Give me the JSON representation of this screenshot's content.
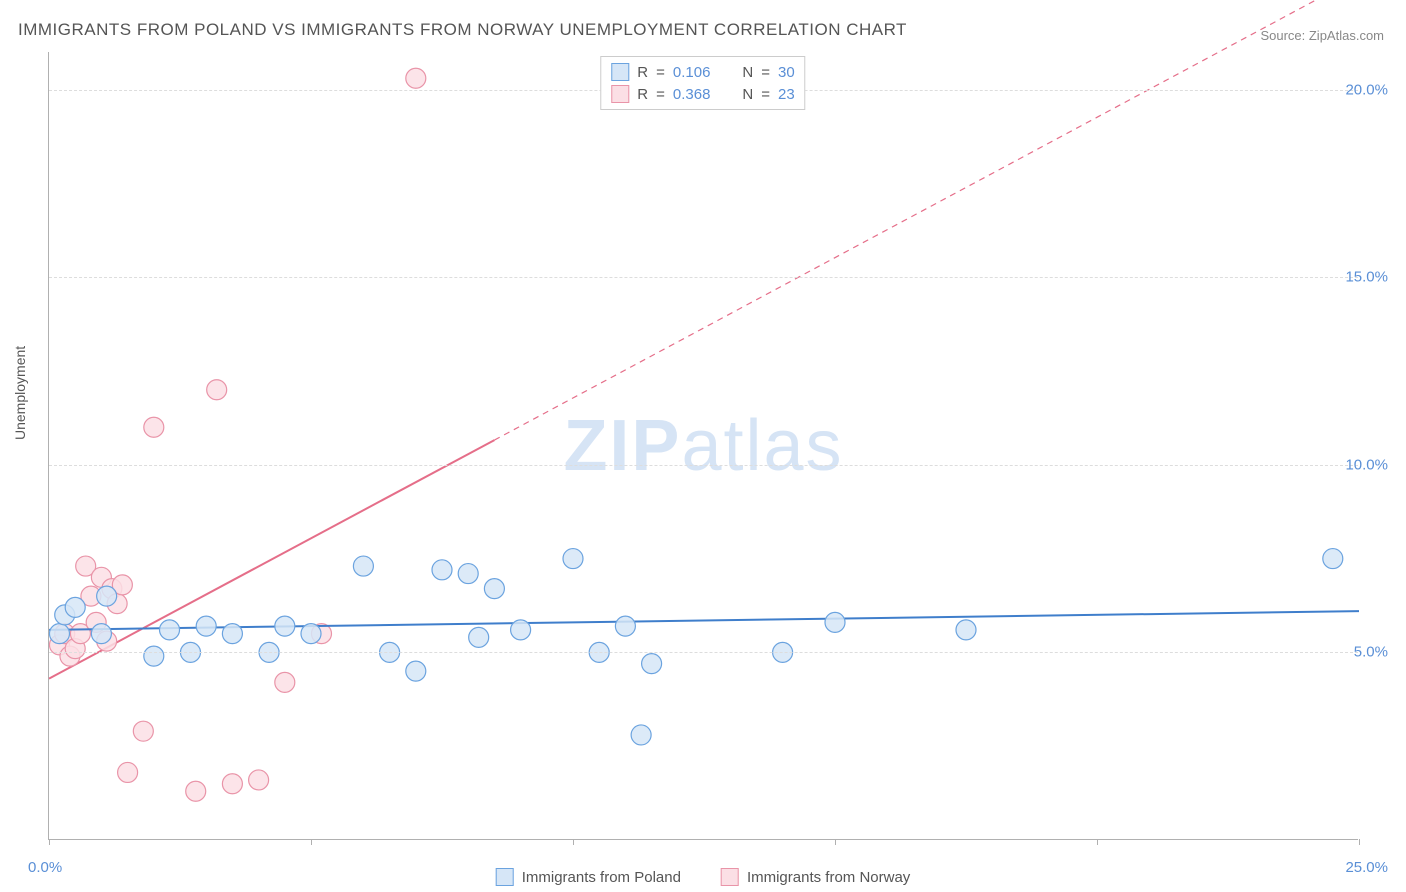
{
  "title": "IMMIGRANTS FROM POLAND VS IMMIGRANTS FROM NORWAY UNEMPLOYMENT CORRELATION CHART",
  "source": "Source: ZipAtlas.com",
  "ylabel": "Unemployment",
  "watermark_bold": "ZIP",
  "watermark_rest": "atlas",
  "chart": {
    "type": "scatter",
    "xlim": [
      0,
      25
    ],
    "ylim": [
      0,
      21
    ],
    "x_ticks": [
      0,
      5,
      10,
      15,
      20,
      25
    ],
    "x_tick_labels": {
      "0": "0.0%",
      "25": "25.0%"
    },
    "y_gridlines": [
      5,
      10,
      15,
      20
    ],
    "y_tick_labels": {
      "5": "5.0%",
      "10": "10.0%",
      "15": "15.0%",
      "20": "20.0%"
    },
    "grid_color": "#dddddd",
    "axis_color": "#b0b0b0",
    "background_color": "#ffffff",
    "marker_radius": 10,
    "marker_stroke_width": 1.2,
    "line_width": 2,
    "series": [
      {
        "name": "Immigrants from Poland",
        "label": "Immigrants from Poland",
        "fill": "#d6e6f7",
        "stroke": "#6ba3df",
        "line_color": "#3f7ecb",
        "R": "0.106",
        "N": "30",
        "trend": {
          "x1": 0,
          "y1": 5.6,
          "x2": 25,
          "y2": 6.1,
          "solid_until": 25
        },
        "points": [
          [
            0.2,
            5.5
          ],
          [
            0.3,
            6.0
          ],
          [
            0.5,
            6.2
          ],
          [
            1.0,
            5.5
          ],
          [
            1.1,
            6.5
          ],
          [
            2.0,
            4.9
          ],
          [
            2.3,
            5.6
          ],
          [
            2.7,
            5.0
          ],
          [
            3.0,
            5.7
          ],
          [
            3.5,
            5.5
          ],
          [
            4.2,
            5.0
          ],
          [
            4.5,
            5.7
          ],
          [
            5.0,
            5.5
          ],
          [
            6.0,
            7.3
          ],
          [
            6.5,
            5.0
          ],
          [
            7.0,
            4.5
          ],
          [
            7.5,
            7.2
          ],
          [
            8.0,
            7.1
          ],
          [
            8.2,
            5.4
          ],
          [
            8.5,
            6.7
          ],
          [
            9.0,
            5.6
          ],
          [
            10.0,
            7.5
          ],
          [
            10.5,
            5.0
          ],
          [
            11.0,
            5.7
          ],
          [
            11.3,
            2.8
          ],
          [
            11.5,
            4.7
          ],
          [
            14.0,
            5.0
          ],
          [
            15.0,
            5.8
          ],
          [
            17.5,
            5.6
          ],
          [
            24.5,
            7.5
          ]
        ]
      },
      {
        "name": "Immigrants from Norway",
        "label": "Immigrants from Norway",
        "fill": "#fbdfe5",
        "stroke": "#e994a8",
        "line_color": "#e56e89",
        "R": "0.368",
        "N": "23",
        "trend": {
          "x1": 0,
          "y1": 4.3,
          "x2": 25,
          "y2": 23.0,
          "solid_until": 8.5
        },
        "points": [
          [
            0.2,
            5.2
          ],
          [
            0.3,
            5.5
          ],
          [
            0.4,
            4.9
          ],
          [
            0.5,
            5.1
          ],
          [
            0.6,
            5.5
          ],
          [
            0.7,
            7.3
          ],
          [
            0.8,
            6.5
          ],
          [
            0.9,
            5.8
          ],
          [
            1.0,
            7.0
          ],
          [
            1.1,
            5.3
          ],
          [
            1.2,
            6.7
          ],
          [
            1.3,
            6.3
          ],
          [
            1.4,
            6.8
          ],
          [
            1.5,
            1.8
          ],
          [
            1.8,
            2.9
          ],
          [
            2.0,
            11.0
          ],
          [
            2.8,
            1.3
          ],
          [
            3.2,
            12.0
          ],
          [
            3.5,
            1.5
          ],
          [
            4.0,
            1.6
          ],
          [
            4.5,
            4.2
          ],
          [
            5.2,
            5.5
          ],
          [
            7.0,
            20.3
          ]
        ]
      }
    ]
  },
  "legend_top": {
    "r_label": "R",
    "n_label": "N",
    "eq": "="
  },
  "legend_bottom": {
    "series1": "Immigrants from Poland",
    "series2": "Immigrants from Norway"
  }
}
